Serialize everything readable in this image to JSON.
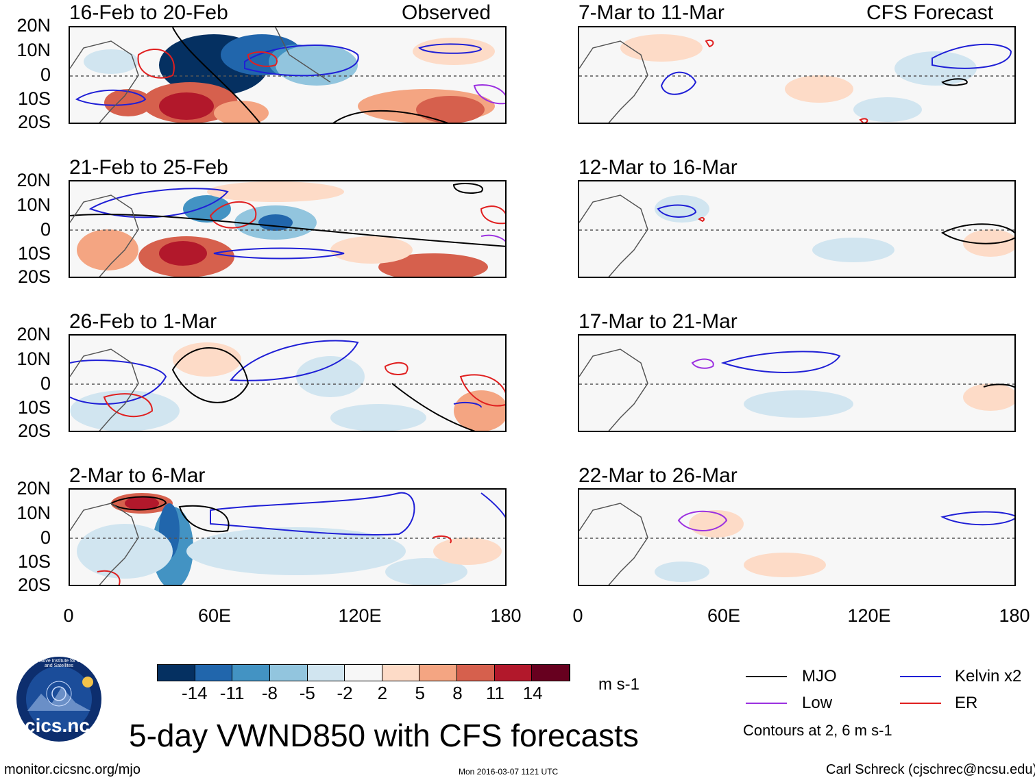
{
  "observed_label": "Observed",
  "forecast_label": "CFS Forecast",
  "lat_labels": [
    "20N",
    "10N",
    "0",
    "10S",
    "20S"
  ],
  "lon_labels": [
    "0",
    "60E",
    "120E",
    "180"
  ],
  "panels": [
    {
      "period": "16-Feb to 20-Feb",
      "kind": "observed"
    },
    {
      "period": "21-Feb to 25-Feb",
      "kind": "observed"
    },
    {
      "period": "26-Feb to 1-Mar",
      "kind": "observed"
    },
    {
      "period": "2-Mar to 6-Mar",
      "kind": "observed"
    },
    {
      "period": "7-Mar to 11-Mar",
      "kind": "forecast"
    },
    {
      "period": "12-Mar to 16-Mar",
      "kind": "forecast"
    },
    {
      "period": "17-Mar to 21-Mar",
      "kind": "forecast"
    },
    {
      "period": "22-Mar to 26-Mar",
      "kind": "forecast"
    }
  ],
  "colorbar": {
    "colors": [
      "#053061",
      "#2166ac",
      "#4393c3",
      "#92c5de",
      "#d1e5f0",
      "#f7f7f7",
      "#fddbc7",
      "#f4a582",
      "#d6604d",
      "#b2182b",
      "#67001f"
    ],
    "ticks": [
      "-14",
      "-11",
      "-8",
      "-5",
      "-2",
      "2",
      "5",
      "8",
      "11",
      "14"
    ],
    "units": "m s-1"
  },
  "legend": {
    "items": [
      {
        "label": "MJO",
        "color": "#000000"
      },
      {
        "label": "Kelvin x2",
        "color": "#1f1fd6"
      },
      {
        "label": "Low",
        "color": "#9b30e0"
      },
      {
        "label": "ER",
        "color": "#e01f1f"
      }
    ],
    "contours_note": "Contours at 2, 6 m s-1"
  },
  "main_title": "5-day VWND850 with CFS forecasts",
  "logo_text": "cics.nc",
  "logo_ring_text": "Cooperative Institute for Climate and Satellites",
  "footer": {
    "url": "monitor.cicsnc.org/mjo",
    "timestamp": "Mon 2016-03-07 1121 UTC",
    "author": "Carl Schreck (cjschrec@ncsu.edu)"
  }
}
